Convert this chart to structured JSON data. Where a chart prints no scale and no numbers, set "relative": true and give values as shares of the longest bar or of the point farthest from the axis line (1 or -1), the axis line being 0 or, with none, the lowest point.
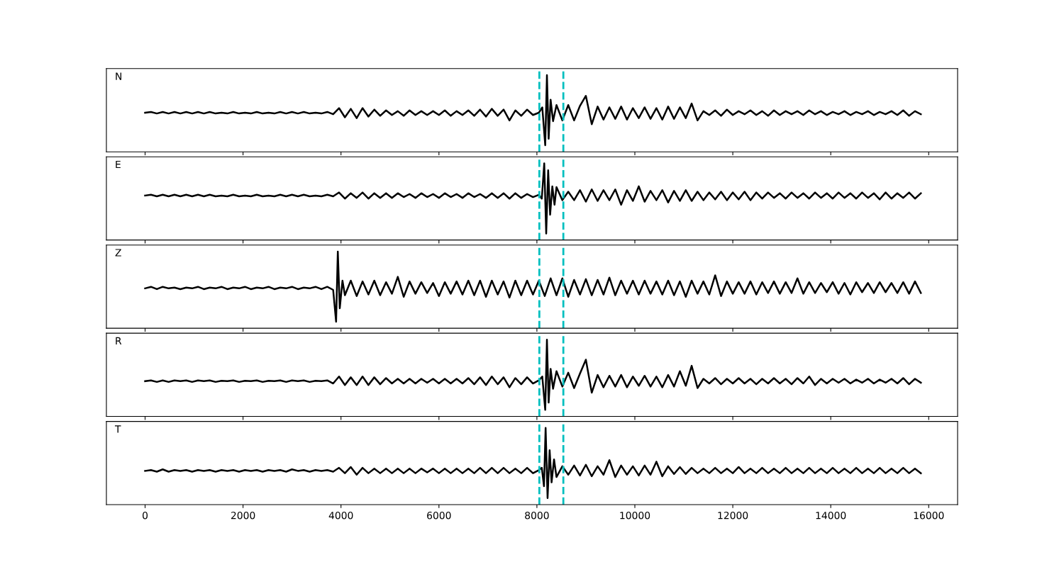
{
  "chart_data": [
    {
      "type": "line",
      "relative": true,
      "annotations": [
        "N"
      ],
      "xlim": [
        -790,
        16590
      ],
      "xticks": [
        0,
        2000,
        4000,
        6000,
        8000,
        10000,
        12000,
        14000,
        16000
      ],
      "tick_labels": false,
      "ref_lines": [
        {
          "axis": "x",
          "value": 8050,
          "color": "#00bfbf",
          "line_style": "dashed"
        },
        {
          "axis": "x",
          "value": 8540,
          "color": "#00bfbf",
          "line_style": "dashed"
        }
      ],
      "x": [
        0,
        120,
        240,
        360,
        480,
        600,
        720,
        840,
        960,
        1080,
        1200,
        1320,
        1440,
        1560,
        1680,
        1800,
        1920,
        2040,
        2160,
        2280,
        2400,
        2520,
        2640,
        2760,
        2880,
        3000,
        3120,
        3240,
        3360,
        3480,
        3600,
        3720,
        3840,
        3960,
        4080,
        4200,
        4320,
        4440,
        4560,
        4680,
        4800,
        4920,
        5040,
        5160,
        5280,
        5400,
        5520,
        5640,
        5760,
        5880,
        6000,
        6120,
        6240,
        6360,
        6480,
        6600,
        6720,
        6840,
        6960,
        7080,
        7200,
        7320,
        7440,
        7560,
        7680,
        7800,
        7920,
        8040,
        8110,
        8170,
        8205,
        8240,
        8280,
        8330,
        8400,
        8520,
        8640,
        8760,
        8880,
        9000,
        9120,
        9240,
        9360,
        9480,
        9600,
        9720,
        9840,
        9960,
        10080,
        10200,
        10320,
        10440,
        10560,
        10680,
        10800,
        10920,
        11040,
        11160,
        11280,
        11400,
        11520,
        11640,
        11760,
        11880,
        12000,
        12120,
        12240,
        12360,
        12480,
        12600,
        12720,
        12840,
        12960,
        13080,
        13200,
        13320,
        13440,
        13560,
        13680,
        13800,
        13920,
        14040,
        14160,
        14280,
        14400,
        14520,
        14640,
        14760,
        14880,
        15000,
        15120,
        15240,
        15360,
        15480,
        15600,
        15720,
        15840
      ],
      "series": [
        {
          "color": "#000000",
          "line_style": "solid",
          "values": [
            0.51,
            0.52,
            0.5,
            0.52,
            0.5,
            0.52,
            0.5,
            0.52,
            0.5,
            0.52,
            0.5,
            0.52,
            0.5,
            0.51,
            0.5,
            0.52,
            0.5,
            0.51,
            0.5,
            0.52,
            0.5,
            0.51,
            0.5,
            0.52,
            0.5,
            0.52,
            0.5,
            0.52,
            0.5,
            0.51,
            0.5,
            0.52,
            0.49,
            0.57,
            0.45,
            0.56,
            0.44,
            0.57,
            0.46,
            0.55,
            0.47,
            0.54,
            0.48,
            0.53,
            0.47,
            0.54,
            0.48,
            0.53,
            0.48,
            0.53,
            0.48,
            0.54,
            0.47,
            0.53,
            0.48,
            0.54,
            0.47,
            0.55,
            0.46,
            0.56,
            0.47,
            0.55,
            0.41,
            0.54,
            0.47,
            0.55,
            0.48,
            0.51,
            0.58,
            0.085,
            1.0,
            0.17,
            0.68,
            0.4,
            0.61,
            0.41,
            0.61,
            0.41,
            0.6,
            0.73,
            0.36,
            0.59,
            0.42,
            0.58,
            0.43,
            0.59,
            0.42,
            0.57,
            0.44,
            0.58,
            0.43,
            0.57,
            0.42,
            0.59,
            0.43,
            0.58,
            0.44,
            0.63,
            0.41,
            0.53,
            0.48,
            0.54,
            0.47,
            0.55,
            0.48,
            0.53,
            0.49,
            0.54,
            0.48,
            0.53,
            0.47,
            0.54,
            0.48,
            0.53,
            0.49,
            0.53,
            0.48,
            0.54,
            0.49,
            0.53,
            0.48,
            0.52,
            0.49,
            0.53,
            0.48,
            0.52,
            0.49,
            0.53,
            0.48,
            0.52,
            0.49,
            0.53,
            0.48,
            0.54,
            0.47,
            0.53,
            0.49
          ]
        }
      ]
    },
    {
      "type": "line",
      "relative": true,
      "annotations": [
        "E"
      ],
      "xlim": [
        -790,
        16590
      ],
      "xticks": [
        0,
        2000,
        4000,
        6000,
        8000,
        10000,
        12000,
        14000,
        16000
      ],
      "tick_labels": false,
      "ref_lines": [
        {
          "axis": "x",
          "value": 8050,
          "color": "#00bfbf",
          "line_style": "dashed"
        },
        {
          "axis": "x",
          "value": 8540,
          "color": "#00bfbf",
          "line_style": "dashed"
        }
      ],
      "x": [
        0,
        120,
        240,
        360,
        480,
        600,
        720,
        840,
        960,
        1080,
        1200,
        1320,
        1440,
        1560,
        1680,
        1800,
        1920,
        2040,
        2160,
        2280,
        2400,
        2520,
        2640,
        2760,
        2880,
        3000,
        3120,
        3240,
        3360,
        3480,
        3600,
        3720,
        3840,
        3960,
        4080,
        4200,
        4320,
        4440,
        4560,
        4680,
        4800,
        4920,
        5040,
        5160,
        5280,
        5400,
        5520,
        5640,
        5760,
        5880,
        6000,
        6120,
        6240,
        6360,
        6480,
        6600,
        6720,
        6840,
        6960,
        7080,
        7200,
        7320,
        7440,
        7560,
        7680,
        7800,
        7920,
        8040,
        8100,
        8150,
        8190,
        8230,
        8270,
        8315,
        8360,
        8400,
        8520,
        8640,
        8760,
        8880,
        9000,
        9120,
        9240,
        9360,
        9480,
        9600,
        9720,
        9840,
        9960,
        10080,
        10200,
        10320,
        10440,
        10560,
        10680,
        10800,
        10920,
        11040,
        11160,
        11280,
        11400,
        11520,
        11640,
        11760,
        11880,
        12000,
        12120,
        12240,
        12360,
        12480,
        12600,
        12720,
        12840,
        12960,
        13080,
        13200,
        13320,
        13440,
        13560,
        13680,
        13800,
        13920,
        14040,
        14160,
        14280,
        14400,
        14520,
        14640,
        14760,
        14880,
        15000,
        15120,
        15240,
        15360,
        15480,
        15600,
        15720,
        15840
      ],
      "series": [
        {
          "color": "#000000",
          "line_style": "solid",
          "values": [
            0.58,
            0.59,
            0.57,
            0.59,
            0.57,
            0.59,
            0.57,
            0.59,
            0.57,
            0.59,
            0.57,
            0.59,
            0.57,
            0.58,
            0.57,
            0.59,
            0.57,
            0.58,
            0.57,
            0.59,
            0.57,
            0.58,
            0.57,
            0.59,
            0.57,
            0.59,
            0.57,
            0.59,
            0.57,
            0.58,
            0.57,
            0.59,
            0.57,
            0.62,
            0.54,
            0.61,
            0.55,
            0.62,
            0.54,
            0.61,
            0.55,
            0.61,
            0.55,
            0.61,
            0.56,
            0.6,
            0.55,
            0.61,
            0.56,
            0.6,
            0.55,
            0.61,
            0.56,
            0.6,
            0.55,
            0.61,
            0.56,
            0.6,
            0.55,
            0.61,
            0.55,
            0.61,
            0.54,
            0.61,
            0.55,
            0.6,
            0.56,
            0.59,
            0.54,
            1.0,
            0.085,
            0.91,
            0.33,
            0.7,
            0.46,
            0.69,
            0.52,
            0.63,
            0.52,
            0.65,
            0.5,
            0.66,
            0.51,
            0.65,
            0.52,
            0.66,
            0.46,
            0.65,
            0.51,
            0.7,
            0.5,
            0.64,
            0.52,
            0.65,
            0.49,
            0.64,
            0.51,
            0.65,
            0.51,
            0.63,
            0.52,
            0.62,
            0.53,
            0.63,
            0.52,
            0.62,
            0.53,
            0.63,
            0.52,
            0.62,
            0.54,
            0.62,
            0.55,
            0.61,
            0.54,
            0.62,
            0.55,
            0.61,
            0.54,
            0.62,
            0.55,
            0.61,
            0.54,
            0.62,
            0.55,
            0.61,
            0.54,
            0.62,
            0.55,
            0.61,
            0.53,
            0.62,
            0.54,
            0.61,
            0.55,
            0.62,
            0.54,
            0.61
          ]
        }
      ]
    },
    {
      "type": "line",
      "relative": true,
      "annotations": [
        "Z"
      ],
      "xlim": [
        -790,
        16590
      ],
      "xticks": [
        0,
        2000,
        4000,
        6000,
        8000,
        10000,
        12000,
        14000,
        16000
      ],
      "tick_labels": false,
      "ref_lines": [
        {
          "axis": "x",
          "value": 8050,
          "color": "#00bfbf",
          "line_style": "dashed"
        },
        {
          "axis": "x",
          "value": 8540,
          "color": "#00bfbf",
          "line_style": "dashed"
        }
      ],
      "x": [
        0,
        120,
        240,
        360,
        480,
        600,
        720,
        840,
        960,
        1080,
        1200,
        1320,
        1440,
        1560,
        1680,
        1800,
        1920,
        2040,
        2160,
        2280,
        2400,
        2520,
        2640,
        2760,
        2880,
        3000,
        3120,
        3240,
        3360,
        3480,
        3600,
        3720,
        3840,
        3900,
        3935,
        3975,
        4030,
        4080,
        4200,
        4320,
        4440,
        4560,
        4680,
        4800,
        4920,
        5040,
        5160,
        5280,
        5400,
        5520,
        5640,
        5760,
        5880,
        6000,
        6120,
        6240,
        6360,
        6480,
        6600,
        6720,
        6840,
        6960,
        7080,
        7200,
        7320,
        7440,
        7560,
        7680,
        7800,
        7920,
        8040,
        8160,
        8280,
        8400,
        8520,
        8640,
        8760,
        8880,
        9000,
        9120,
        9240,
        9360,
        9480,
        9600,
        9720,
        9840,
        9960,
        10080,
        10200,
        10320,
        10440,
        10560,
        10680,
        10800,
        10920,
        11040,
        11160,
        11280,
        11400,
        11520,
        11640,
        11760,
        11880,
        12000,
        12120,
        12240,
        12360,
        12480,
        12600,
        12720,
        12840,
        12960,
        13080,
        13200,
        13320,
        13440,
        13560,
        13680,
        13800,
        13920,
        14040,
        14160,
        14280,
        14400,
        14520,
        14640,
        14760,
        14880,
        15000,
        15120,
        15240,
        15360,
        15480,
        15600,
        15720,
        15840
      ],
      "series": [
        {
          "color": "#000000",
          "line_style": "solid",
          "values": [
            0.52,
            0.54,
            0.51,
            0.54,
            0.52,
            0.53,
            0.51,
            0.53,
            0.52,
            0.54,
            0.51,
            0.53,
            0.52,
            0.54,
            0.51,
            0.53,
            0.52,
            0.54,
            0.51,
            0.53,
            0.52,
            0.54,
            0.51,
            0.53,
            0.52,
            0.54,
            0.51,
            0.53,
            0.52,
            0.54,
            0.51,
            0.54,
            0.5,
            0.085,
            1.0,
            0.26,
            0.62,
            0.43,
            0.62,
            0.42,
            0.61,
            0.44,
            0.62,
            0.43,
            0.6,
            0.45,
            0.67,
            0.41,
            0.61,
            0.45,
            0.6,
            0.46,
            0.59,
            0.42,
            0.6,
            0.45,
            0.61,
            0.44,
            0.62,
            0.43,
            0.62,
            0.41,
            0.62,
            0.44,
            0.61,
            0.4,
            0.62,
            0.43,
            0.62,
            0.44,
            0.62,
            0.42,
            0.65,
            0.43,
            0.65,
            0.41,
            0.63,
            0.44,
            0.64,
            0.43,
            0.63,
            0.44,
            0.66,
            0.43,
            0.62,
            0.45,
            0.62,
            0.44,
            0.62,
            0.45,
            0.61,
            0.44,
            0.62,
            0.43,
            0.61,
            0.41,
            0.62,
            0.45,
            0.61,
            0.44,
            0.69,
            0.42,
            0.61,
            0.45,
            0.6,
            0.45,
            0.61,
            0.44,
            0.6,
            0.46,
            0.61,
            0.45,
            0.6,
            0.46,
            0.65,
            0.45,
            0.6,
            0.46,
            0.59,
            0.47,
            0.6,
            0.45,
            0.59,
            0.44,
            0.6,
            0.47,
            0.59,
            0.46,
            0.6,
            0.47,
            0.59,
            0.46,
            0.6,
            0.45,
            0.61,
            0.46
          ]
        }
      ]
    },
    {
      "type": "line",
      "relative": true,
      "annotations": [
        "R"
      ],
      "xlim": [
        -790,
        16590
      ],
      "xticks": [
        0,
        2000,
        4000,
        6000,
        8000,
        10000,
        12000,
        14000,
        16000
      ],
      "tick_labels": false,
      "ref_lines": [
        {
          "axis": "x",
          "value": 8050,
          "color": "#00bfbf",
          "line_style": "dashed"
        },
        {
          "axis": "x",
          "value": 8540,
          "color": "#00bfbf",
          "line_style": "dashed"
        }
      ],
      "x": [
        0,
        120,
        240,
        360,
        480,
        600,
        720,
        840,
        960,
        1080,
        1200,
        1320,
        1440,
        1560,
        1680,
        1800,
        1920,
        2040,
        2160,
        2280,
        2400,
        2520,
        2640,
        2760,
        2880,
        3000,
        3120,
        3240,
        3360,
        3480,
        3600,
        3720,
        3840,
        3960,
        4080,
        4200,
        4320,
        4440,
        4560,
        4680,
        4800,
        4920,
        5040,
        5160,
        5280,
        5400,
        5520,
        5640,
        5760,
        5880,
        6000,
        6120,
        6240,
        6360,
        6480,
        6600,
        6720,
        6840,
        6960,
        7080,
        7200,
        7320,
        7440,
        7560,
        7680,
        7800,
        7920,
        8040,
        8110,
        8170,
        8205,
        8240,
        8280,
        8330,
        8400,
        8520,
        8640,
        8760,
        8880,
        9000,
        9120,
        9240,
        9360,
        9480,
        9600,
        9720,
        9840,
        9960,
        10080,
        10200,
        10320,
        10440,
        10560,
        10680,
        10800,
        10920,
        11040,
        11160,
        11280,
        11400,
        11520,
        11640,
        11760,
        11880,
        12000,
        12120,
        12240,
        12360,
        12480,
        12600,
        12720,
        12840,
        12960,
        13080,
        13200,
        13320,
        13440,
        13560,
        13680,
        13800,
        13920,
        14040,
        14160,
        14280,
        14400,
        14520,
        14640,
        14760,
        14880,
        15000,
        15120,
        15240,
        15360,
        15480,
        15600,
        15720,
        15840
      ],
      "series": [
        {
          "color": "#000000",
          "line_style": "solid",
          "values": [
            0.46,
            0.47,
            0.45,
            0.47,
            0.45,
            0.47,
            0.46,
            0.47,
            0.45,
            0.47,
            0.46,
            0.47,
            0.45,
            0.465,
            0.46,
            0.47,
            0.45,
            0.465,
            0.46,
            0.47,
            0.45,
            0.465,
            0.46,
            0.47,
            0.45,
            0.47,
            0.46,
            0.47,
            0.45,
            0.465,
            0.46,
            0.47,
            0.43,
            0.52,
            0.41,
            0.51,
            0.41,
            0.52,
            0.41,
            0.51,
            0.42,
            0.5,
            0.43,
            0.49,
            0.43,
            0.49,
            0.43,
            0.49,
            0.44,
            0.49,
            0.43,
            0.49,
            0.43,
            0.49,
            0.43,
            0.5,
            0.42,
            0.51,
            0.41,
            0.52,
            0.42,
            0.51,
            0.38,
            0.5,
            0.42,
            0.51,
            0.43,
            0.47,
            0.52,
            0.085,
            1.0,
            0.18,
            0.62,
            0.36,
            0.59,
            0.39,
            0.57,
            0.37,
            0.56,
            0.74,
            0.31,
            0.54,
            0.38,
            0.53,
            0.39,
            0.54,
            0.38,
            0.52,
            0.4,
            0.53,
            0.39,
            0.52,
            0.38,
            0.54,
            0.39,
            0.59,
            0.4,
            0.66,
            0.37,
            0.49,
            0.43,
            0.5,
            0.42,
            0.49,
            0.43,
            0.5,
            0.43,
            0.49,
            0.42,
            0.49,
            0.43,
            0.5,
            0.43,
            0.49,
            0.42,
            0.5,
            0.43,
            0.52,
            0.41,
            0.49,
            0.43,
            0.49,
            0.44,
            0.49,
            0.43,
            0.48,
            0.44,
            0.49,
            0.43,
            0.48,
            0.44,
            0.49,
            0.43,
            0.5,
            0.42,
            0.49,
            0.44
          ]
        }
      ]
    },
    {
      "type": "line",
      "relative": true,
      "annotations": [
        "T"
      ],
      "xlim": [
        -790,
        16590
      ],
      "xticks": [
        0,
        2000,
        4000,
        6000,
        8000,
        10000,
        12000,
        14000,
        16000
      ],
      "tick_labels": "x",
      "ref_lines": [
        {
          "axis": "x",
          "value": 8050,
          "color": "#00bfbf",
          "line_style": "dashed"
        },
        {
          "axis": "x",
          "value": 8540,
          "color": "#00bfbf",
          "line_style": "dashed"
        }
      ],
      "x": [
        0,
        120,
        240,
        360,
        480,
        600,
        720,
        840,
        960,
        1080,
        1200,
        1320,
        1440,
        1560,
        1680,
        1800,
        1920,
        2040,
        2160,
        2280,
        2400,
        2520,
        2640,
        2760,
        2880,
        3000,
        3120,
        3240,
        3360,
        3480,
        3600,
        3720,
        3840,
        3960,
        4080,
        4200,
        4320,
        4440,
        4560,
        4680,
        4800,
        4920,
        5040,
        5160,
        5280,
        5400,
        5520,
        5640,
        5760,
        5880,
        6000,
        6120,
        6240,
        6360,
        6480,
        6600,
        6720,
        6840,
        6960,
        7080,
        7200,
        7320,
        7440,
        7560,
        7680,
        7800,
        7920,
        8040,
        8100,
        8145,
        8178,
        8218,
        8260,
        8300,
        8350,
        8400,
        8520,
        8640,
        8760,
        8880,
        9000,
        9120,
        9240,
        9360,
        9480,
        9600,
        9720,
        9840,
        9960,
        10080,
        10200,
        10320,
        10440,
        10560,
        10680,
        10800,
        10920,
        11040,
        11160,
        11280,
        11400,
        11520,
        11640,
        11760,
        11880,
        12000,
        12120,
        12240,
        12360,
        12480,
        12600,
        12720,
        12840,
        12960,
        13080,
        13200,
        13320,
        13440,
        13560,
        13680,
        13800,
        13920,
        14040,
        14160,
        14280,
        14400,
        14520,
        14640,
        14760,
        14880,
        15000,
        15120,
        15240,
        15360,
        15480,
        15600,
        15720,
        15840
      ],
      "series": [
        {
          "color": "#000000",
          "line_style": "solid",
          "values": [
            0.44,
            0.45,
            0.43,
            0.46,
            0.43,
            0.45,
            0.44,
            0.45,
            0.43,
            0.45,
            0.44,
            0.45,
            0.43,
            0.45,
            0.44,
            0.45,
            0.43,
            0.45,
            0.44,
            0.45,
            0.43,
            0.45,
            0.44,
            0.45,
            0.43,
            0.46,
            0.44,
            0.45,
            0.43,
            0.45,
            0.44,
            0.45,
            0.43,
            0.48,
            0.41,
            0.49,
            0.39,
            0.48,
            0.41,
            0.47,
            0.41,
            0.47,
            0.41,
            0.47,
            0.41,
            0.47,
            0.41,
            0.47,
            0.42,
            0.47,
            0.41,
            0.47,
            0.41,
            0.47,
            0.41,
            0.47,
            0.41,
            0.48,
            0.41,
            0.48,
            0.41,
            0.48,
            0.41,
            0.47,
            0.41,
            0.48,
            0.41,
            0.45,
            0.48,
            0.24,
            1.0,
            0.085,
            0.71,
            0.29,
            0.59,
            0.36,
            0.5,
            0.39,
            0.51,
            0.38,
            0.52,
            0.37,
            0.5,
            0.39,
            0.58,
            0.36,
            0.51,
            0.39,
            0.5,
            0.38,
            0.51,
            0.39,
            0.56,
            0.37,
            0.5,
            0.4,
            0.49,
            0.4,
            0.48,
            0.41,
            0.47,
            0.41,
            0.48,
            0.41,
            0.47,
            0.41,
            0.49,
            0.41,
            0.47,
            0.41,
            0.48,
            0.41,
            0.47,
            0.41,
            0.48,
            0.41,
            0.47,
            0.41,
            0.48,
            0.41,
            0.47,
            0.41,
            0.48,
            0.41,
            0.47,
            0.41,
            0.48,
            0.41,
            0.47,
            0.41,
            0.48,
            0.41,
            0.47,
            0.41,
            0.48,
            0.41,
            0.47,
            0.41
          ]
        }
      ]
    }
  ]
}
